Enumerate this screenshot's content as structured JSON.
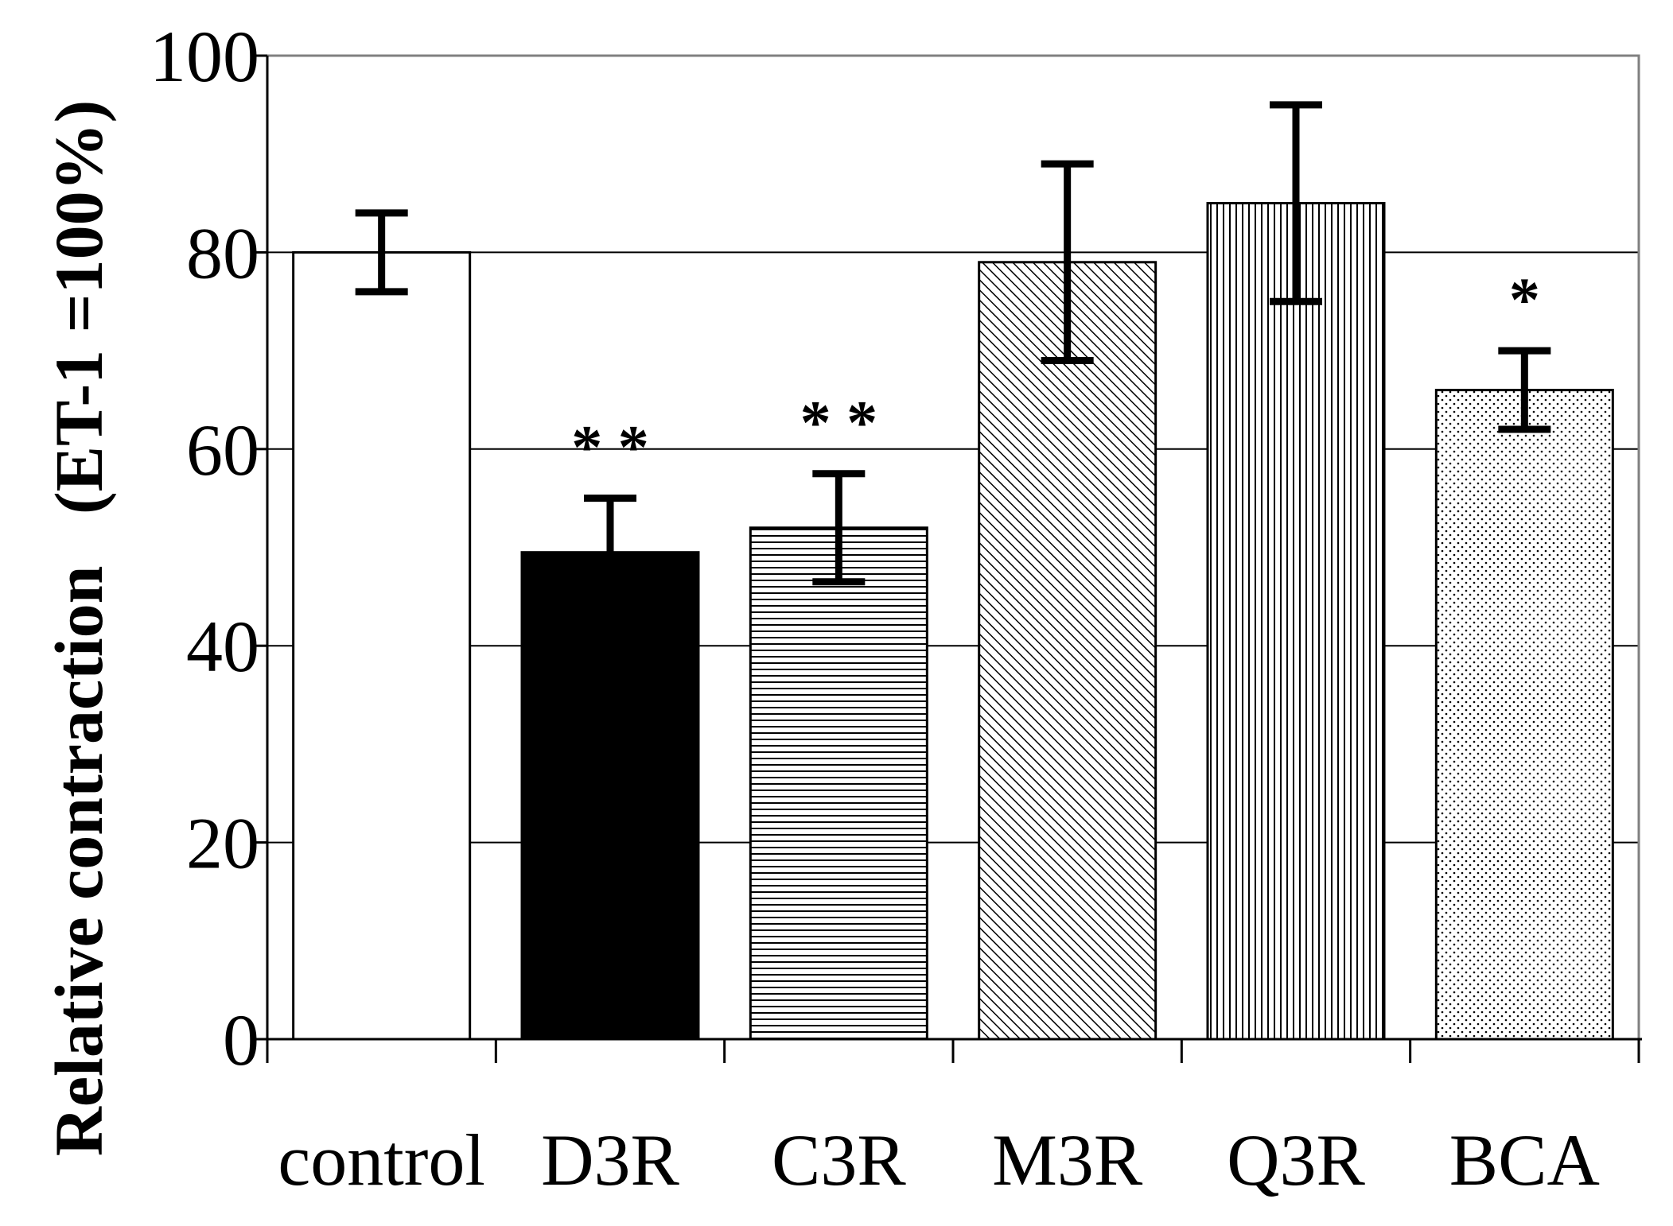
{
  "chart_data": {
    "type": "bar",
    "title": "",
    "xlabel": "",
    "ylabel": "Relative contraction   (ET-1 =100%)",
    "ylim": [
      0,
      100
    ],
    "yticks": [
      0,
      20,
      40,
      60,
      80,
      100
    ],
    "grid": true,
    "categories": [
      "control",
      "D3R",
      "C3R",
      "M3R",
      "Q3R",
      "BCA"
    ],
    "values": [
      80,
      49.5,
      52,
      79,
      85,
      66
    ],
    "errors": [
      4,
      5.5,
      5.5,
      10,
      10,
      4
    ],
    "annotations": [
      "",
      "**",
      "**",
      "",
      "",
      "*"
    ],
    "fills": [
      "white",
      "solid-black",
      "horizontal-lines",
      "diagonal-lines",
      "vertical-lines",
      "dots"
    ]
  },
  "colors": {
    "axis": "#000000",
    "grid": "#000000",
    "frame": "#808080",
    "bar_edge": "#000000"
  }
}
